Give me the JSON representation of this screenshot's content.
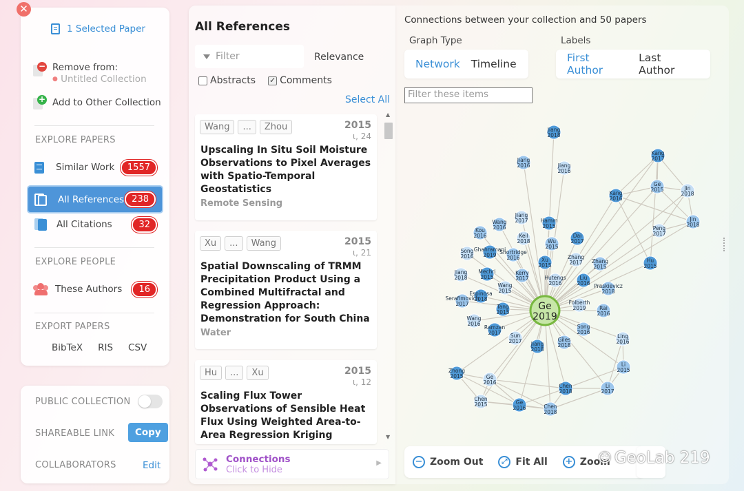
{
  "collection": {
    "selected_label": "1 Selected Paper",
    "remove_from_label": "Remove from:",
    "untitled_collection": "Untitled Collection",
    "add_other_label": "Add to Other Collection"
  },
  "explore_papers": {
    "heading": "EXPLORE PAPERS",
    "similar_work": {
      "label": "Similar Work",
      "count": "1557"
    },
    "all_references": {
      "label": "All References",
      "count": "238"
    },
    "all_citations": {
      "label": "All Citations",
      "count": "32"
    }
  },
  "explore_people": {
    "heading": "EXPLORE PEOPLE",
    "these_authors": {
      "label": "These Authors",
      "count": "16"
    }
  },
  "export": {
    "heading": "EXPORT PAPERS",
    "bibtex": "BibTeX",
    "ris": "RIS",
    "csv": "CSV"
  },
  "sharing": {
    "public_collection": "PUBLIC COLLECTION",
    "shareable_link": "SHAREABLE LINK",
    "copy_label": "Copy",
    "collaborators": "COLLABORATORS",
    "edit_label": "Edit"
  },
  "references": {
    "title": "All References",
    "filter_placeholder": "Filter",
    "sort_label": "Relevance",
    "abstracts_label": "Abstracts",
    "comments_label": "Comments",
    "select_all": "Select All",
    "items": [
      {
        "first_author": "Wang",
        "ellipsis": "...",
        "last_author": "Zhou",
        "year": "2015",
        "cites": "24",
        "title": "Upscaling In Situ Soil Moisture Observations to Pixel Averages with Spatio-Temporal Geostatistics",
        "journal": "Remote Sensing"
      },
      {
        "first_author": "Xu",
        "ellipsis": "...",
        "last_author": "Wang",
        "year": "2015",
        "cites": "21",
        "title": "Spatial Downscaling of TRMM Precipitation Product Using a Combined Multifractal and Regression Approach: Demonstration for South China",
        "journal": "Water"
      },
      {
        "first_author": "Hu",
        "ellipsis": "...",
        "last_author": "Xu",
        "year": "2015",
        "cites": "12",
        "title": "Scaling Flux Tower Observations of Sensible Heat Flux Using Weighted Area-to-Area Regression Kriging",
        "journal": ""
      }
    ],
    "connections_label": "Connections",
    "connections_sub": "Click to Hide"
  },
  "graph": {
    "header": "Connections between your collection and 50 papers",
    "graph_type_label": "Graph Type",
    "network_label": "Network",
    "timeline_label": "Timeline",
    "labels_label": "Labels",
    "first_author_label": "First Author",
    "last_author_label": "Last Author",
    "filter_placeholder": "Filter these items",
    "center": {
      "name": "Ge",
      "year": "2019"
    },
    "nodes": [
      {
        "name": "Jiang",
        "year": "2018"
      },
      {
        "name": "Jiang",
        "year": "2016"
      },
      {
        "name": "Jiang",
        "year": "2016"
      },
      {
        "name": "Kang",
        "year": "2017"
      },
      {
        "name": "Ge",
        "year": "2015"
      },
      {
        "name": "Jin",
        "year": "2018"
      },
      {
        "name": "Kang",
        "year": "2016"
      },
      {
        "name": "Jin",
        "year": "2018"
      },
      {
        "name": "Peng",
        "year": "2017"
      },
      {
        "name": "Hu",
        "year": "2015"
      },
      {
        "name": "Wang",
        "year": "2016"
      },
      {
        "name": "Jiang",
        "year": "2017"
      },
      {
        "name": "Hamm",
        "year": "2015"
      },
      {
        "name": "Kou",
        "year": "2016"
      },
      {
        "name": "Keil",
        "year": "2018"
      },
      {
        "name": "Dai",
        "year": "2017"
      },
      {
        "name": "Wu",
        "year": "2015"
      },
      {
        "name": "Song",
        "year": "2016"
      },
      {
        "name": "Ghahramani",
        "year": "2019"
      },
      {
        "name": "Shortridge",
        "year": "2016"
      },
      {
        "name": "Zhang",
        "year": "2017"
      },
      {
        "name": "Xu",
        "year": "2015"
      },
      {
        "name": "Zhang",
        "year": "2015"
      },
      {
        "name": "Jiang",
        "year": "2018"
      },
      {
        "name": "Mechri",
        "year": "2015"
      },
      {
        "name": "Kerry",
        "year": "2017"
      },
      {
        "name": "Hutengs",
        "year": "2016"
      },
      {
        "name": "Liu",
        "year": "2016"
      },
      {
        "name": "Praskievicz",
        "year": "2018"
      },
      {
        "name": "Wang",
        "year": "2015"
      },
      {
        "name": "Espinosa",
        "year": "2018"
      },
      {
        "name": "Serafimovich",
        "year": "2017"
      },
      {
        "name": "Folberth",
        "year": "2019"
      },
      {
        "name": "Tang",
        "year": "2015"
      },
      {
        "name": "Rai",
        "year": "2016"
      },
      {
        "name": "Wang",
        "year": "2016"
      },
      {
        "name": "Ramzan",
        "year": "2017"
      },
      {
        "name": "Song",
        "year": "2016"
      },
      {
        "name": "Sun",
        "year": "2017"
      },
      {
        "name": "Jiang",
        "year": "2018"
      },
      {
        "name": "Giles",
        "year": "2018"
      },
      {
        "name": "Ling",
        "year": "2016"
      },
      {
        "name": "Zhong",
        "year": "2015"
      },
      {
        "name": "Li",
        "year": "2015"
      },
      {
        "name": "Ge",
        "year": "2016"
      },
      {
        "name": "Chen",
        "year": "2018"
      },
      {
        "name": "Li",
        "year": "2017"
      },
      {
        "name": "Chen",
        "year": "2015"
      },
      {
        "name": "Ge",
        "year": "2016"
      },
      {
        "name": "Chen",
        "year": "2018"
      }
    ],
    "zoom_out": "Zoom Out",
    "fit_all": "Fit All",
    "zoom_in": "Zoom",
    "watermark": "GeoLab 219"
  }
}
